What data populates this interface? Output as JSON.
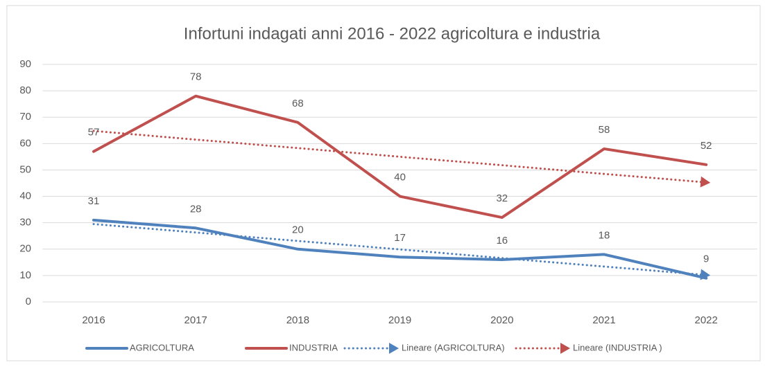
{
  "chart_data": {
    "type": "line",
    "title": "Infortuni indagati anni 2016 - 2022 agricoltura e industria",
    "categories": [
      "2016",
      "2017",
      "2018",
      "2019",
      "2020",
      "2021",
      "2022"
    ],
    "ylim": [
      0,
      90
    ],
    "yticks": [
      0,
      10,
      20,
      30,
      40,
      50,
      60,
      70,
      80,
      90
    ],
    "grid": true,
    "legend": "bottom",
    "series": [
      {
        "name": "AGRICOLTURA",
        "color": "#4f81bd",
        "style": "solid",
        "data_labels": true,
        "values": [
          31,
          28,
          20,
          17,
          16,
          18,
          9
        ]
      },
      {
        "name": "INDUSTRIA",
        "color": "#c0504d",
        "style": "solid",
        "data_labels": true,
        "values": [
          57,
          78,
          68,
          40,
          32,
          58,
          52
        ]
      },
      {
        "name": "Lineare (AGRICOLTURA)",
        "color": "#4f81bd",
        "style": "dotted",
        "data_labels": false,
        "values": [
          29.5,
          26.3,
          23.1,
          19.9,
          16.6,
          13.4,
          10.2
        ]
      },
      {
        "name": "Lineare (INDUSTRIA )",
        "color": "#c0504d",
        "style": "dotted",
        "data_labels": false,
        "values": [
          64.8,
          61.5,
          58.3,
          55,
          51.8,
          48.5,
          45.3
        ]
      }
    ]
  }
}
